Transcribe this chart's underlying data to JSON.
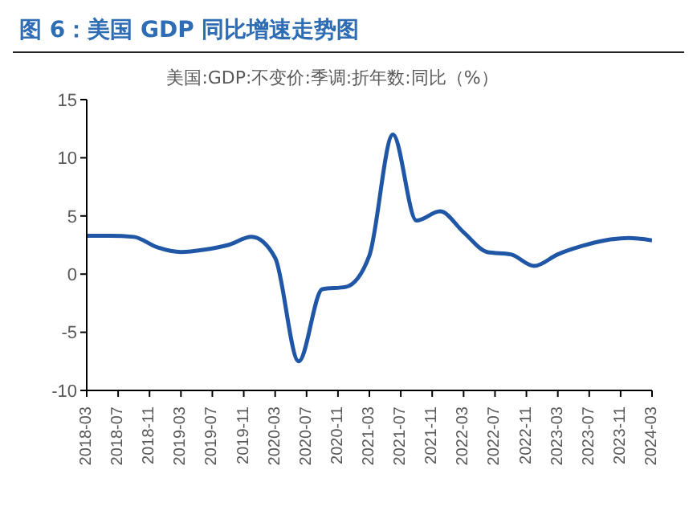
{
  "chart_data": {
    "type": "line",
    "title": "图 6：美国 GDP 同比增速走势图",
    "x": [
      "2018-03",
      "2018-06",
      "2018-09",
      "2018-12",
      "2019-03",
      "2019-06",
      "2019-09",
      "2019-12",
      "2020-03",
      "2020-06",
      "2020-09",
      "2020-12",
      "2021-03",
      "2021-06",
      "2021-09",
      "2021-12",
      "2022-03",
      "2022-06",
      "2022-09",
      "2022-12",
      "2023-03",
      "2023-06",
      "2023-09",
      "2023-12",
      "2024-03"
    ],
    "series": [
      {
        "name": "美国:GDP:不变价:季调:折年数:同比（%）",
        "color": "#1f56a5",
        "values": [
          3.3,
          3.3,
          3.2,
          2.3,
          1.9,
          2.1,
          2.5,
          3.2,
          1.4,
          -7.5,
          -1.3,
          -1.1,
          1.6,
          12.0,
          4.6,
          5.4,
          3.6,
          1.9,
          1.7,
          0.7,
          1.7,
          2.4,
          2.9,
          3.1,
          2.9
        ]
      }
    ],
    "xlim": [
      "2018-03",
      "2024-03"
    ],
    "xticks": [
      "2018-03",
      "2018-07",
      "2018-11",
      "2019-03",
      "2019-07",
      "2019-11",
      "2020-03",
      "2020-07",
      "2020-11",
      "2021-03",
      "2021-07",
      "2021-11",
      "2022-03",
      "2022-07",
      "2022-11",
      "2023-03",
      "2023-07",
      "2023-11",
      "2024-03"
    ],
    "ylim": [
      -10,
      15
    ],
    "yticks": [
      -10,
      -5,
      0,
      5,
      10,
      15
    ],
    "grid": false,
    "legend": "top",
    "marker": "none",
    "line_style": "solid"
  }
}
